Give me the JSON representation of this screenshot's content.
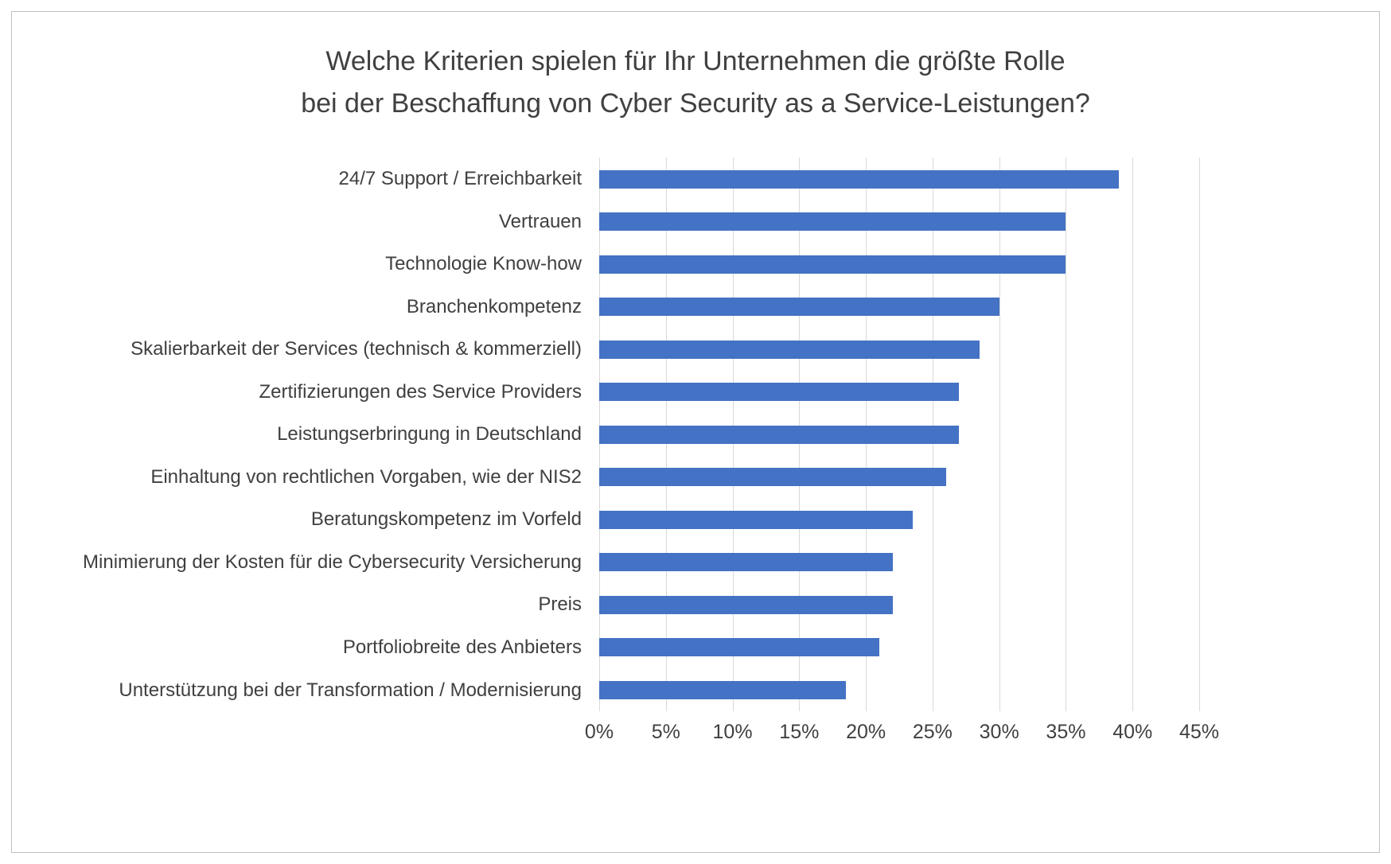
{
  "title": {
    "line1": "Welche Kriterien spielen für Ihr Unternehmen die größte Rolle",
    "line2": "bei der Beschaffung von Cyber Security as a Service-Leistungen?"
  },
  "chart_data": {
    "type": "bar",
    "orientation": "horizontal",
    "title": "Welche Kriterien spielen für Ihr Unternehmen die größte Rolle bei der Beschaffung von Cyber Security as a Service-Leistungen?",
    "categories": [
      "24/7 Support / Erreichbarkeit",
      "Vertrauen",
      "Technologie Know-how",
      "Branchenkompetenz",
      "Skalierbarkeit der Services (technisch & kommerziell)",
      "Zertifizierungen des Service Providers",
      "Leistungserbringung in Deutschland",
      "Einhaltung von rechtlichen Vorgaben, wie der NIS2",
      "Beratungskompetenz im Vorfeld",
      "Minimierung der Kosten für die Cybersecurity Versicherung",
      "Preis",
      "Portfoliobreite des Anbieters",
      "Unterstützung bei der Transformation / Modernisierung"
    ],
    "values": [
      39,
      35,
      35,
      30,
      28.5,
      27,
      27,
      26,
      23.5,
      22,
      22,
      21,
      18.5
    ],
    "value_unit": "%",
    "xlim": [
      0,
      45
    ],
    "x_ticks": [
      "0%",
      "5%",
      "10%",
      "15%",
      "20%",
      "25%",
      "30%",
      "35%",
      "40%",
      "45%"
    ],
    "grid": true,
    "legend": false,
    "bar_color": "#4472c4",
    "gridline_color": "#d9d9d9",
    "text_color": "#404040"
  }
}
